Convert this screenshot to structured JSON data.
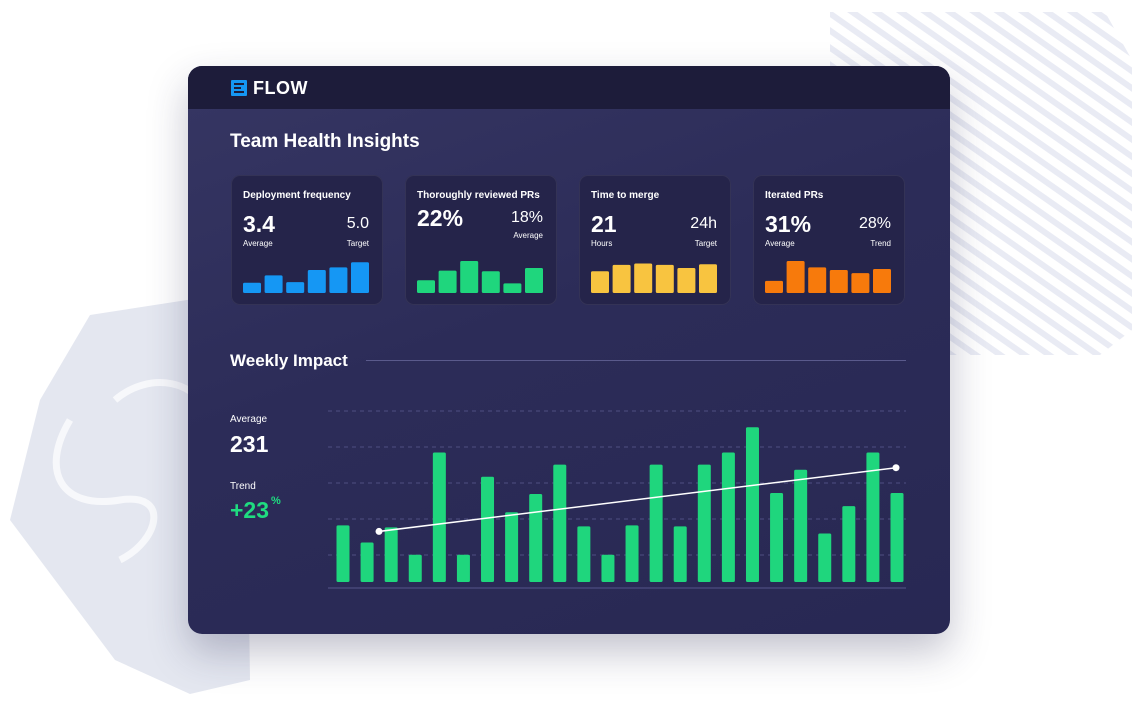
{
  "colors": {
    "blue": "#1597f4",
    "green": "#1fd67d",
    "yellow": "#f8c440",
    "orange": "#f77a0c",
    "window_bg": "#2f2f5c",
    "titlebar_bg": "#1d1c3a"
  },
  "header": {
    "brand": "FLOW",
    "logo_icon": "flow-logo-icon"
  },
  "page": {
    "title": "Team Health Insights"
  },
  "cards": [
    {
      "title": "Deployment frequency",
      "value": "3.4",
      "value_label": "Average",
      "secondary_value": "5.0",
      "secondary_label": "Target",
      "color": "#1597f4",
      "bars": [
        0.32,
        0.55,
        0.34,
        0.72,
        0.8,
        0.96
      ]
    },
    {
      "title": "Thoroughly reviewed PRs",
      "value": "22%",
      "value_label": "",
      "secondary_value": "18%",
      "secondary_label": "Average",
      "color": "#1fd67d",
      "bars": [
        0.4,
        0.7,
        1.0,
        0.68,
        0.3,
        0.78
      ]
    },
    {
      "title": "Time to merge",
      "value": "21",
      "value_label": "Hours",
      "secondary_value": "24h",
      "secondary_label": "Target",
      "color": "#f8c440",
      "bars": [
        0.68,
        0.88,
        0.92,
        0.88,
        0.78,
        0.9
      ]
    },
    {
      "title": "Iterated PRs",
      "value": "31%",
      "value_label": "Average",
      "secondary_value": "28%",
      "secondary_label": "Trend",
      "color": "#f77a0c",
      "bars": [
        0.38,
        1.0,
        0.8,
        0.72,
        0.62,
        0.75
      ]
    }
  ],
  "weekly": {
    "title": "Weekly Impact",
    "average_label": "Average",
    "average_value": "231",
    "trend_label": "Trend",
    "trend_value": "+23",
    "trend_unit": "%"
  },
  "chart_data": {
    "type": "bar",
    "values": [
      56,
      39,
      54,
      27,
      128,
      27,
      104,
      69,
      87,
      116,
      55,
      27,
      56,
      116,
      55,
      116,
      128,
      153,
      88,
      111,
      48,
      75,
      128,
      88
    ],
    "ylim": [
      0,
      175
    ],
    "trend_line": {
      "start": 50,
      "end": 113
    },
    "gridlines": true
  }
}
